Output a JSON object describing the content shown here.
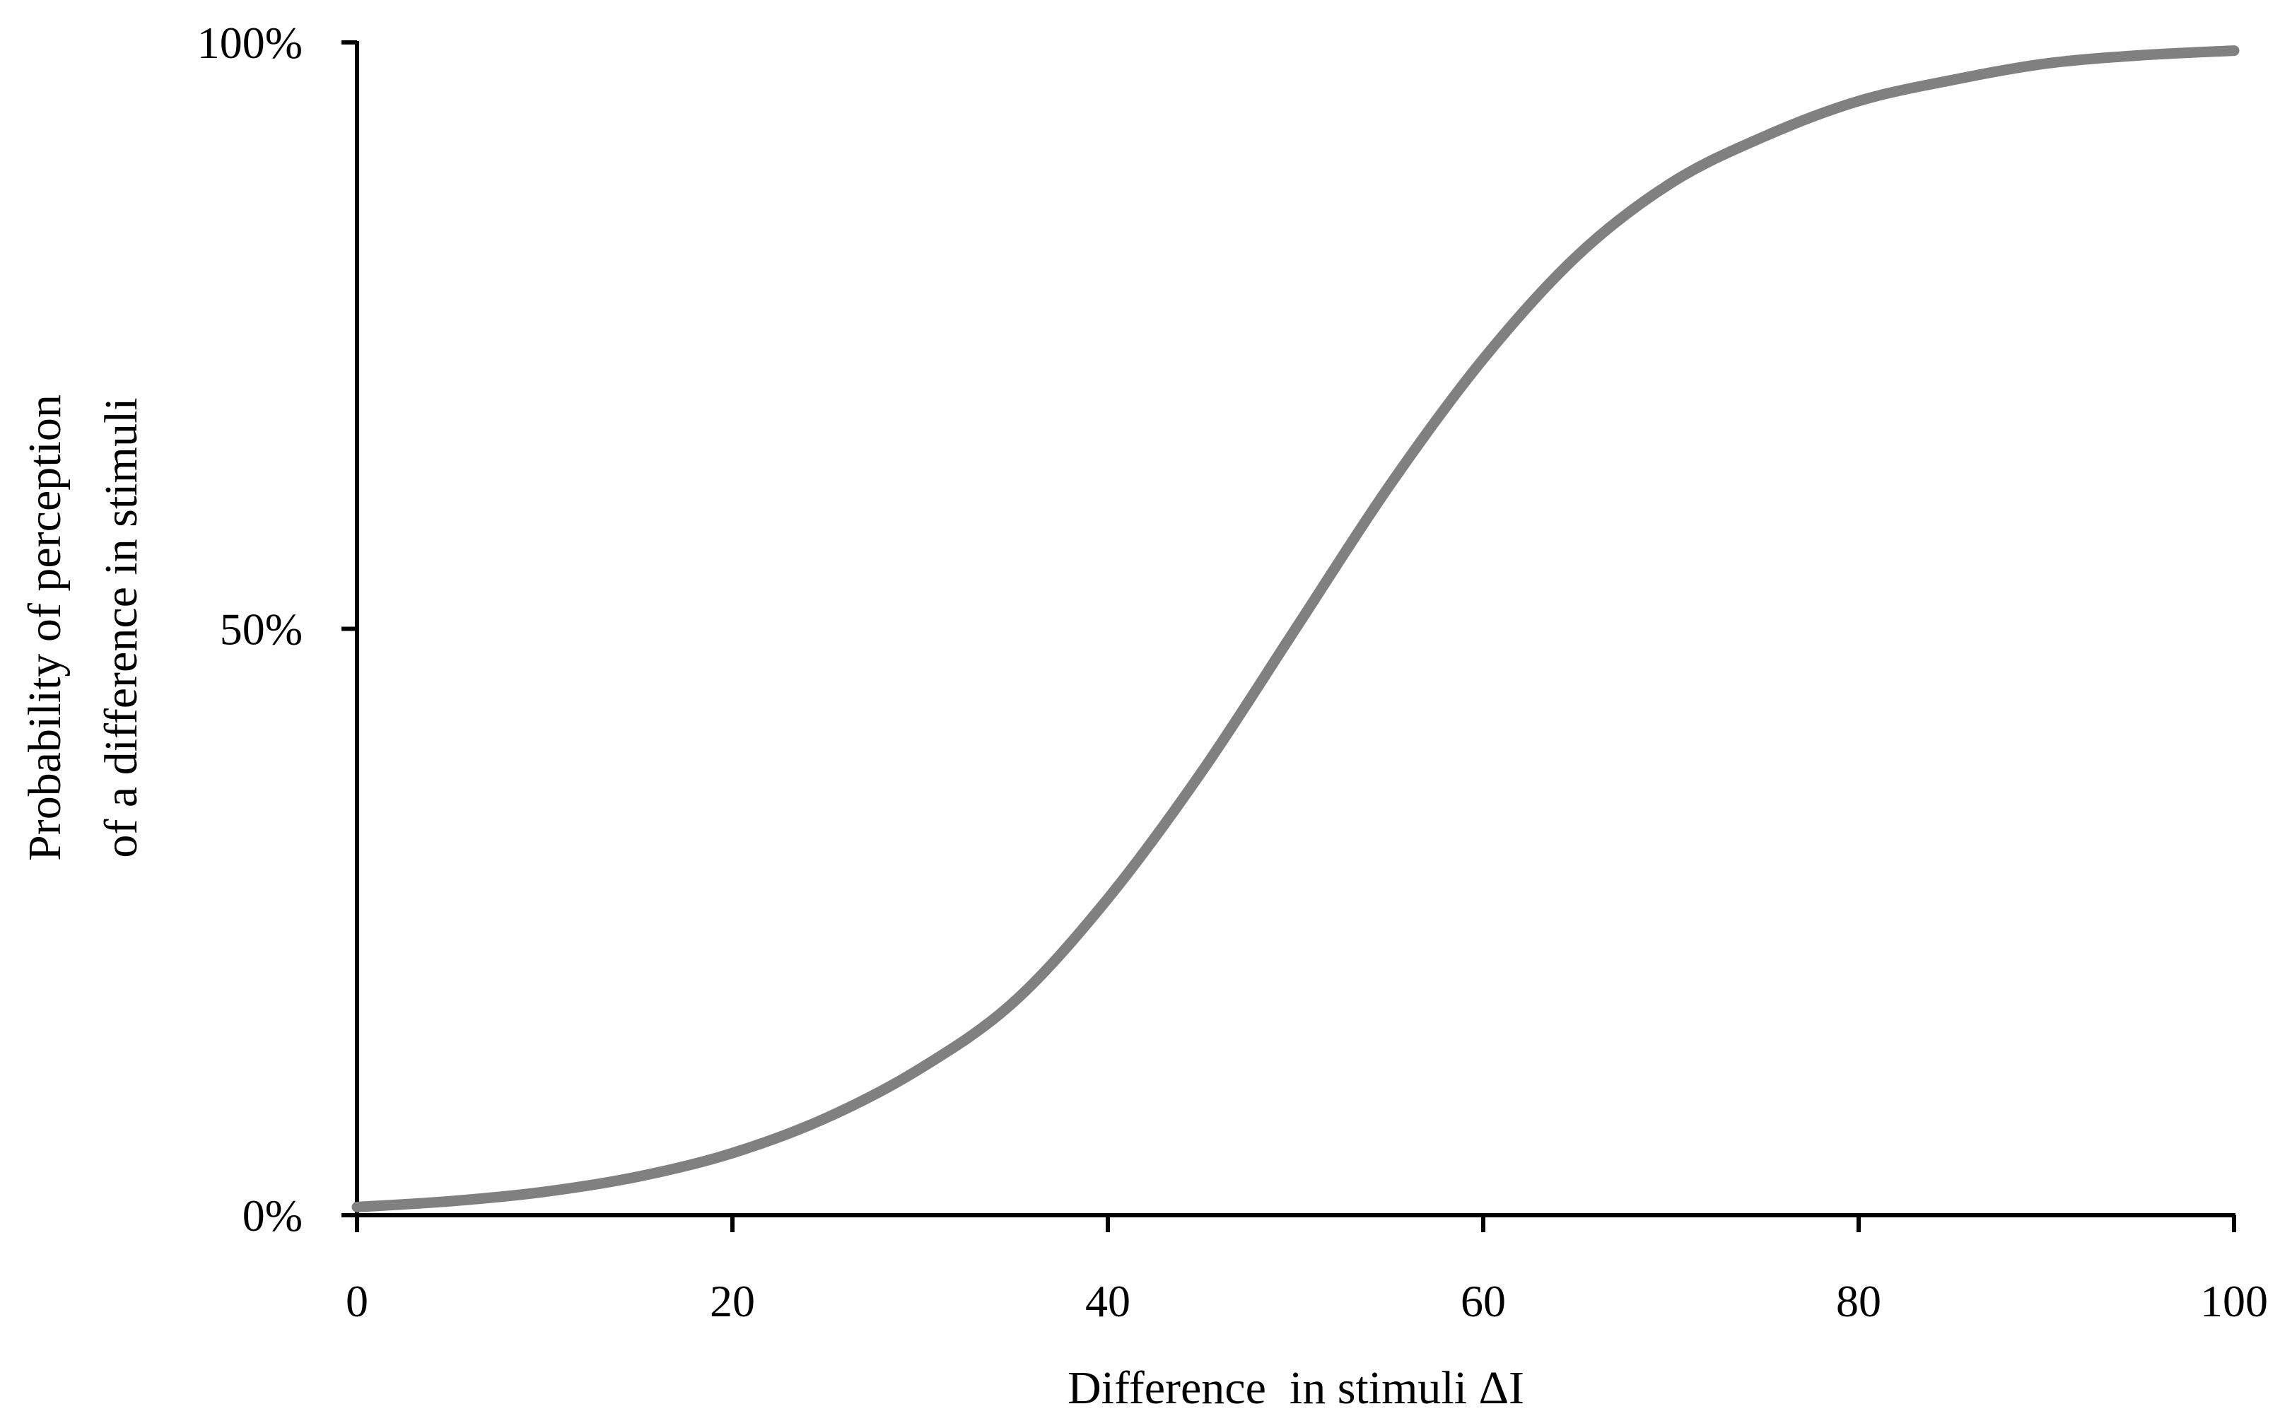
{
  "chart_data": {
    "type": "line",
    "title": "",
    "xlabel": "Difference  in stimuli ΔI",
    "ylabel_lines": [
      "Probability of perception",
      "of a difference in stimuli"
    ],
    "xlim": [
      0,
      100
    ],
    "ylim": [
      0,
      1
    ],
    "x_ticks": [
      0,
      20,
      40,
      60,
      80,
      100
    ],
    "x_tick_labels": [
      "0",
      "20",
      "40",
      "60",
      "80",
      "100"
    ],
    "y_ticks": [
      0,
      0.5,
      1
    ],
    "y_tick_labels": [
      "0%",
      "50%",
      "100%"
    ],
    "grid": false,
    "legend": "none",
    "line_color": "#808080",
    "axis_color": "#000000",
    "series": [
      {
        "x": [
          0,
          5,
          10,
          15,
          20,
          25,
          30,
          35,
          40,
          45,
          50,
          55,
          60,
          65,
          70,
          75,
          80,
          85,
          90,
          95,
          100
        ],
        "values": [
          0.007,
          0.012,
          0.02,
          0.033,
          0.053,
          0.083,
          0.125,
          0.182,
          0.27,
          0.378,
          0.5,
          0.622,
          0.73,
          0.818,
          0.88,
          0.92,
          0.95,
          0.968,
          0.982,
          0.989,
          0.993
        ]
      }
    ]
  }
}
